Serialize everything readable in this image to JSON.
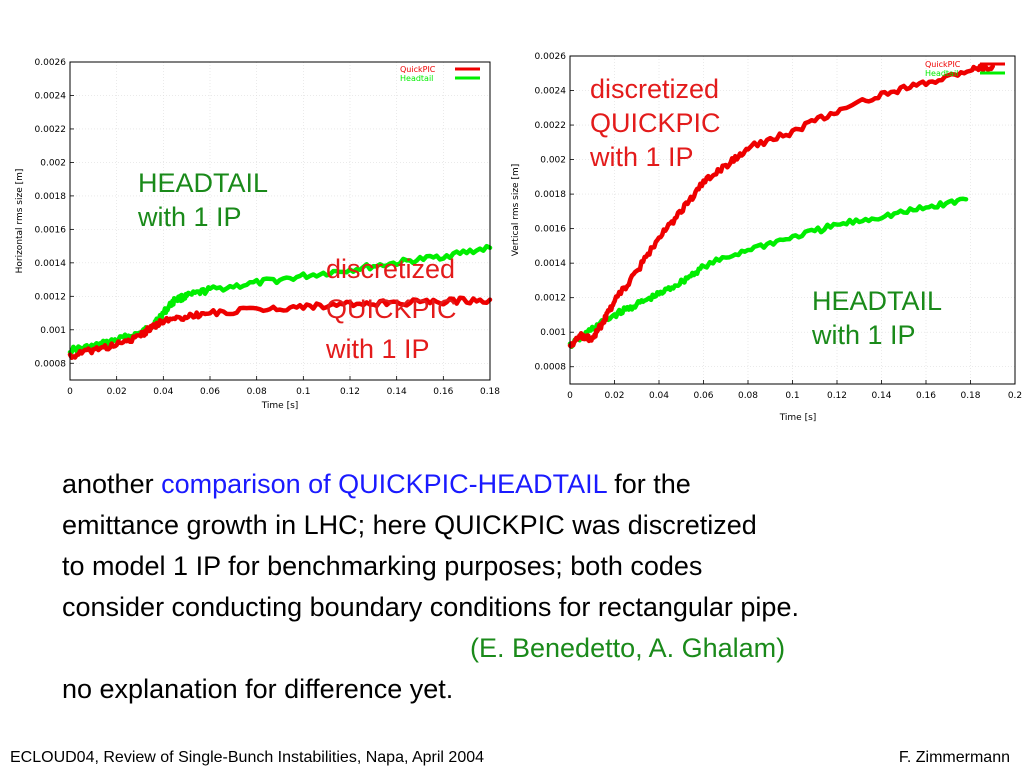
{
  "colors": {
    "red": "#ee0000",
    "green": "#00ee00",
    "ann_red": "#e31b1b",
    "ann_green": "#1a8a1a",
    "blue": "#1a1aff"
  },
  "chart_data": [
    {
      "type": "line",
      "xlabel": "Time [s]",
      "ylabel": "Horizontal rms size [m]",
      "xlim": [
        0,
        0.18
      ],
      "ylim": [
        0.0007,
        0.0026
      ],
      "xticks": [
        "0",
        "0.02",
        "0.04",
        "0.06",
        "0.08",
        "0.1",
        "0.12",
        "0.14",
        "0.16",
        "0.18"
      ],
      "yticks": [
        "0.0008",
        "0.001",
        "0.0012",
        "0.0014",
        "0.0016",
        "0.0018",
        "0.002",
        "0.0022",
        "0.0024",
        "0.0026"
      ],
      "legend_position": "top-right",
      "series": [
        {
          "name": "QuickPIC",
          "color": "#ee0000",
          "x": [
            0,
            0.01,
            0.02,
            0.03,
            0.035,
            0.04,
            0.05,
            0.06,
            0.08,
            0.1,
            0.12,
            0.14,
            0.16,
            0.18
          ],
          "y": [
            0.00084,
            0.00088,
            0.00091,
            0.00096,
            0.00102,
            0.00105,
            0.00108,
            0.0011,
            0.00112,
            0.00114,
            0.00115,
            0.00116,
            0.00117,
            0.00118
          ]
        },
        {
          "name": "Headtail",
          "color": "#00ee00",
          "x": [
            0,
            0.01,
            0.02,
            0.03,
            0.035,
            0.04,
            0.045,
            0.05,
            0.06,
            0.08,
            0.1,
            0.12,
            0.14,
            0.16,
            0.18
          ],
          "y": [
            0.00088,
            0.0009,
            0.00094,
            0.00098,
            0.00102,
            0.0011,
            0.00118,
            0.0012,
            0.00124,
            0.00128,
            0.00132,
            0.00136,
            0.0014,
            0.00144,
            0.00149
          ]
        }
      ],
      "annotations": [
        {
          "lines": [
            "HEADTAIL",
            "with 1 IP"
          ],
          "color": "#1a8a1a"
        },
        {
          "lines": [
            "discretized",
            "QUICKPIC",
            "with 1 IP"
          ],
          "color": "#e31b1b"
        }
      ]
    },
    {
      "type": "line",
      "xlabel": "Time [s]",
      "ylabel": "Vertical rms size [m]",
      "xlim": [
        0,
        0.2
      ],
      "ylim": [
        0.0007,
        0.0026
      ],
      "xticks": [
        "0",
        "0.02",
        "0.04",
        "0.06",
        "0.08",
        "0.1",
        "0.12",
        "0.14",
        "0.16",
        "0.18",
        "0.2"
      ],
      "yticks": [
        "0.0008",
        "0.001",
        "0.0012",
        "0.0014",
        "0.0016",
        "0.0018",
        "0.002",
        "0.0022",
        "0.0024",
        "0.0026"
      ],
      "legend_position": "top-right",
      "series": [
        {
          "name": "QuickPIC",
          "color": "#ee0000",
          "x": [
            0,
            0.005,
            0.01,
            0.015,
            0.02,
            0.03,
            0.04,
            0.05,
            0.06,
            0.07,
            0.08,
            0.1,
            0.12,
            0.14,
            0.16,
            0.18,
            0.19
          ],
          "y": [
            0.00092,
            0.00098,
            0.00096,
            0.00106,
            0.00118,
            0.00135,
            0.00155,
            0.0017,
            0.00187,
            0.00196,
            0.00207,
            0.00216,
            0.00228,
            0.00238,
            0.00244,
            0.00252,
            0.00254
          ]
        },
        {
          "name": "Headtail",
          "color": "#00ee00",
          "x": [
            0,
            0.01,
            0.02,
            0.03,
            0.04,
            0.05,
            0.06,
            0.08,
            0.1,
            0.12,
            0.14,
            0.16,
            0.178
          ],
          "y": [
            0.00092,
            0.00102,
            0.0011,
            0.00116,
            0.00122,
            0.00129,
            0.00138,
            0.00148,
            0.00155,
            0.00162,
            0.00167,
            0.00172,
            0.00177
          ]
        }
      ],
      "annotations": [
        {
          "lines": [
            "discretized",
            "QUICKPIC",
            "with 1 IP"
          ],
          "color": "#e31b1b"
        },
        {
          "lines": [
            "HEADTAIL",
            "with 1 IP"
          ],
          "color": "#1a8a1a"
        }
      ]
    }
  ],
  "text": {
    "line1_a": "another ",
    "line1_b": "comparison of QUICKPIC-HEADTAIL",
    "line1_c": " for the",
    "line2": "emittance growth in LHC;  here QUICKPIC was discretized",
    "line3": "to model 1 IP for benchmarking purposes; both codes",
    "line4": "consider conducting boundary conditions for rectangular pipe.",
    "line5": "(E. Benedetto, A. Ghalam)",
    "line6": "no explanation for difference yet."
  },
  "footer": {
    "left": "ECLOUD04, Review of Single-Bunch Instabilities, Napa, April 2004",
    "right": "F. Zimmermann"
  }
}
